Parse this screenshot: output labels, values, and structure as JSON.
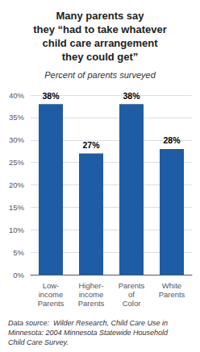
{
  "chart_data": {
    "type": "bar",
    "title": "Many parents say\nthey “had to take whatever\nchild care arrangement\nthey could get”",
    "subtitle": "Percent of parents surveyed",
    "annotations": [
      "Data source:  Wilder Research, Child Care Use in\nMinnesota: 2004 Minnesota Statewide Household\nChild Care Survey."
    ],
    "categories": [
      "Low-\nincome\nParents",
      "Higher-\nincome\nParents",
      "Parents\nof\nColor",
      "White\nParents"
    ],
    "values": [
      38,
      27,
      38,
      28
    ],
    "value_labels": [
      "38%",
      "27%",
      "38%",
      "28%"
    ],
    "data_labels": true,
    "color": "#1e5ca6",
    "ylim": [
      0,
      40
    ],
    "yticks": [
      {
        "value": 0,
        "label": "0%"
      },
      {
        "value": 5,
        "label": "5%"
      },
      {
        "value": 10,
        "label": "10%"
      },
      {
        "value": 15,
        "label": "15%"
      },
      {
        "value": 20,
        "label": "20%"
      },
      {
        "value": 25,
        "label": "25%"
      },
      {
        "value": 30,
        "label": "30%"
      },
      {
        "value": 35,
        "label": "35%"
      },
      {
        "value": 40,
        "label": "40%"
      }
    ],
    "grid": true
  }
}
